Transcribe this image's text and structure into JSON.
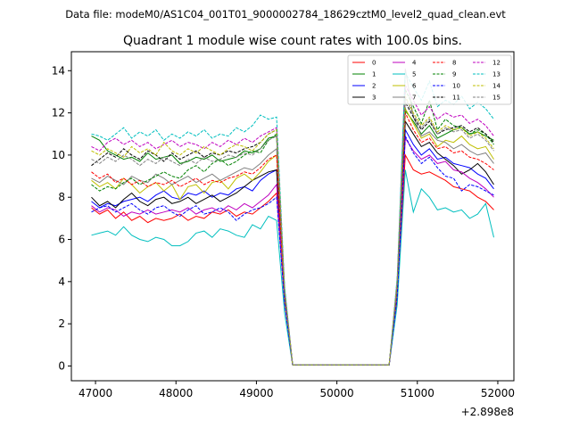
{
  "chart_data": {
    "type": "line",
    "suptitle": "Data file: modeM0/AS1C04_001T01_9000002784_18629cztM0_level2_quad_clean.evt",
    "title": "Quadrant 1 module wise count rates with 100.0s bins.",
    "xlabel": "",
    "ylabel": "",
    "x_offset_label": "+2.898e8",
    "xlim": [
      46700,
      52200
    ],
    "ylim": [
      -0.7,
      14.9
    ],
    "xticks": [
      47000,
      48000,
      49000,
      50000,
      51000,
      52000
    ],
    "xtick_labels": [
      "47000",
      "48000",
      "49000",
      "50000",
      "51000",
      "52000"
    ],
    "yticks": [
      0,
      2,
      4,
      6,
      8,
      10,
      12,
      14
    ],
    "ytick_labels": [
      "0",
      "2",
      "4",
      "6",
      "8",
      "10",
      "12",
      "14"
    ],
    "grid": false,
    "legend_position": "top-right",
    "x": [
      46950,
      47050,
      47150,
      47250,
      47350,
      47450,
      47550,
      47650,
      47750,
      47850,
      47950,
      48050,
      48150,
      48250,
      48350,
      48450,
      48550,
      48650,
      48750,
      48850,
      48950,
      49050,
      49150,
      49250,
      49350,
      49450,
      49550,
      50650,
      50750,
      50850,
      50950,
      51050,
      51150,
      51250,
      51350,
      51450,
      51550,
      51650,
      51750,
      51850,
      51950
    ],
    "series": [
      {
        "name": "0",
        "color": "#ff0000",
        "dash": "solid",
        "values": [
          7.5,
          7.2,
          7.4,
          7.0,
          7.3,
          6.9,
          7.1,
          6.8,
          7.0,
          6.9,
          7.0,
          7.2,
          6.9,
          7.1,
          7.0,
          7.3,
          7.2,
          7.4,
          7.1,
          7.3,
          7.2,
          7.5,
          7.8,
          8.2,
          3.0,
          0.05,
          0.05,
          0.05,
          3.2,
          10.0,
          9.3,
          9.1,
          9.2,
          9.0,
          8.8,
          8.5,
          8.4,
          8.3,
          8.0,
          7.8,
          7.4
        ]
      },
      {
        "name": "1",
        "color": "#008000",
        "dash": "solid",
        "values": [
          10.9,
          10.7,
          10.2,
          10.0,
          9.8,
          9.9,
          9.7,
          10.1,
          9.8,
          9.9,
          10.0,
          9.6,
          9.7,
          9.9,
          9.8,
          10.0,
          9.7,
          9.8,
          9.9,
          10.2,
          10.1,
          10.3,
          10.8,
          10.9,
          3.4,
          0.05,
          0.05,
          0.05,
          3.8,
          12.1,
          11.6,
          11.0,
          11.4,
          10.8,
          11.0,
          11.2,
          11.3,
          11.0,
          11.1,
          10.9,
          10.7
        ]
      },
      {
        "name": "2",
        "color": "#0000ff",
        "dash": "solid",
        "values": [
          7.8,
          7.5,
          7.7,
          7.6,
          7.8,
          7.9,
          8.0,
          7.8,
          8.1,
          8.3,
          8.0,
          7.9,
          8.2,
          8.1,
          8.3,
          8.0,
          8.2,
          8.1,
          8.4,
          8.5,
          8.3,
          8.8,
          9.1,
          9.3,
          3.2,
          0.05,
          0.05,
          0.05,
          3.6,
          11.2,
          10.5,
          10.0,
          10.3,
          9.8,
          9.9,
          9.6,
          9.5,
          9.4,
          9.1,
          8.9,
          8.4
        ]
      },
      {
        "name": "3",
        "color": "#000000",
        "dash": "solid",
        "values": [
          8.0,
          7.6,
          7.8,
          7.5,
          7.9,
          8.2,
          7.8,
          7.6,
          7.9,
          8.0,
          7.7,
          7.8,
          8.0,
          7.7,
          7.9,
          8.1,
          7.8,
          8.0,
          8.2,
          8.5,
          8.8,
          9.0,
          9.2,
          9.3,
          3.3,
          0.05,
          0.05,
          0.05,
          3.7,
          11.6,
          11.0,
          10.4,
          10.6,
          10.1,
          9.8,
          9.5,
          9.1,
          9.3,
          9.6,
          9.2,
          8.6
        ]
      },
      {
        "name": "4",
        "color": "#bf00bf",
        "dash": "solid",
        "values": [
          7.6,
          7.3,
          7.5,
          7.4,
          7.1,
          7.3,
          7.2,
          7.4,
          7.2,
          7.3,
          7.4,
          7.3,
          7.5,
          7.2,
          7.4,
          7.5,
          7.3,
          7.6,
          7.4,
          7.7,
          7.5,
          7.8,
          8.1,
          8.6,
          3.1,
          0.05,
          0.05,
          0.05,
          3.4,
          10.8,
          10.2,
          9.8,
          10.0,
          9.6,
          9.7,
          9.3,
          9.2,
          8.9,
          8.7,
          8.4,
          8.0
        ]
      },
      {
        "name": "5",
        "color": "#00bfbf",
        "dash": "solid",
        "values": [
          6.2,
          6.3,
          6.4,
          6.2,
          6.6,
          6.2,
          6.0,
          5.9,
          6.1,
          6.0,
          5.7,
          5.7,
          5.9,
          6.3,
          6.4,
          6.1,
          6.5,
          6.4,
          6.2,
          6.1,
          6.7,
          6.5,
          7.1,
          6.9,
          2.5,
          0.05,
          0.05,
          0.05,
          2.9,
          9.3,
          7.3,
          8.4,
          8.0,
          7.4,
          7.5,
          7.3,
          7.4,
          7.0,
          7.2,
          7.7,
          6.1
        ]
      },
      {
        "name": "6",
        "color": "#bfbf00",
        "dash": "solid",
        "values": [
          8.8,
          8.5,
          8.7,
          8.4,
          8.9,
          8.6,
          8.2,
          8.5,
          8.7,
          8.3,
          8.6,
          7.9,
          8.5,
          8.6,
          8.2,
          8.7,
          8.8,
          8.4,
          8.9,
          9.1,
          8.8,
          9.2,
          9.7,
          10.0,
          3.2,
          0.05,
          0.05,
          0.05,
          3.6,
          12.2,
          11.5,
          10.8,
          11.0,
          10.4,
          10.7,
          10.6,
          10.9,
          10.5,
          10.3,
          10.4,
          9.8
        ]
      },
      {
        "name": "7",
        "color": "#808080",
        "dash": "solid",
        "values": [
          8.9,
          8.7,
          9.0,
          8.8,
          8.6,
          9.0,
          8.8,
          8.7,
          9.1,
          8.9,
          8.6,
          8.8,
          9.0,
          8.7,
          8.9,
          9.1,
          8.8,
          9.0,
          9.2,
          9.4,
          9.3,
          9.6,
          10.0,
          10.3,
          3.4,
          0.05,
          0.05,
          0.05,
          3.9,
          14.1,
          11.8,
          10.9,
          11.1,
          10.7,
          10.6,
          10.3,
          10.5,
          10.2,
          10.0,
          10.1,
          9.6
        ]
      },
      {
        "name": "8",
        "color": "#ff0000",
        "dash": "dashed",
        "values": [
          9.2,
          8.9,
          9.1,
          8.7,
          8.9,
          8.6,
          8.8,
          8.5,
          8.7,
          8.6,
          8.8,
          8.5,
          8.7,
          8.9,
          8.6,
          8.8,
          8.7,
          8.9,
          9.0,
          9.2,
          9.1,
          9.4,
          9.8,
          10.0,
          3.3,
          0.05,
          0.05,
          0.05,
          3.7,
          12.0,
          11.2,
          10.6,
          10.8,
          10.3,
          10.4,
          10.1,
          10.2,
          9.9,
          9.8,
          9.6,
          9.3
        ]
      },
      {
        "name": "9",
        "color": "#008000",
        "dash": "dashed",
        "values": [
          8.6,
          8.3,
          8.5,
          8.4,
          8.7,
          8.9,
          8.6,
          8.8,
          9.0,
          9.2,
          9.0,
          8.9,
          9.3,
          9.5,
          9.2,
          9.6,
          9.8,
          9.5,
          9.7,
          10.0,
          10.2,
          10.1,
          10.7,
          11.0,
          3.5,
          0.05,
          0.05,
          0.05,
          3.9,
          13.1,
          12.3,
          11.5,
          12.6,
          11.2,
          11.7,
          11.4,
          11.3,
          11.0,
          11.2,
          11.0,
          10.5
        ]
      },
      {
        "name": "10",
        "color": "#0000ff",
        "dash": "dashed",
        "values": [
          7.3,
          7.5,
          7.6,
          7.3,
          7.5,
          7.7,
          7.4,
          7.2,
          7.5,
          7.6,
          7.3,
          7.1,
          7.4,
          7.6,
          7.2,
          7.3,
          7.5,
          7.3,
          6.9,
          7.2,
          7.4,
          7.5,
          7.7,
          8.0,
          3.0,
          0.05,
          0.05,
          0.05,
          3.3,
          10.9,
          10.1,
          9.6,
          9.9,
          9.4,
          9.0,
          8.9,
          8.3,
          8.6,
          8.5,
          8.3,
          8.1
        ]
      },
      {
        "name": "11",
        "color": "#000000",
        "dash": "dashed",
        "values": [
          9.5,
          9.8,
          10.1,
          9.9,
          10.3,
          10.0,
          9.8,
          10.2,
          10.0,
          9.7,
          10.1,
          9.8,
          10.0,
          10.2,
          9.9,
          10.1,
          10.0,
          10.2,
          10.1,
          10.3,
          10.4,
          10.6,
          11.0,
          11.2,
          3.6,
          0.05,
          0.05,
          0.05,
          4.0,
          12.5,
          11.8,
          11.2,
          11.6,
          11.0,
          11.2,
          11.3,
          11.4,
          11.1,
          11.3,
          11.0,
          10.6
        ]
      },
      {
        "name": "12",
        "color": "#bf00bf",
        "dash": "dashed",
        "values": [
          10.4,
          10.2,
          10.6,
          10.8,
          10.5,
          10.7,
          10.4,
          10.6,
          10.3,
          10.5,
          10.7,
          10.4,
          10.6,
          10.5,
          10.3,
          10.6,
          10.4,
          10.7,
          10.5,
          10.8,
          10.6,
          10.9,
          11.1,
          11.3,
          3.7,
          0.05,
          0.05,
          0.05,
          4.1,
          13.3,
          12.6,
          11.9,
          12.3,
          11.7,
          12.0,
          11.8,
          11.9,
          11.5,
          11.7,
          11.4,
          10.9
        ]
      },
      {
        "name": "13",
        "color": "#00bfbf",
        "dash": "dashed",
        "values": [
          11.0,
          10.9,
          10.7,
          11.0,
          11.3,
          10.8,
          11.1,
          10.9,
          11.2,
          10.7,
          11.0,
          10.8,
          11.1,
          10.9,
          11.2,
          10.8,
          11.0,
          10.9,
          11.3,
          11.1,
          11.4,
          11.9,
          11.7,
          11.8,
          3.8,
          0.05,
          0.05,
          0.05,
          4.2,
          13.9,
          13.2,
          12.6,
          13.5,
          12.3,
          12.6,
          12.4,
          12.8,
          12.2,
          12.5,
          12.2,
          11.7
        ]
      },
      {
        "name": "14",
        "color": "#bfbf00",
        "dash": "dashed",
        "values": [
          10.2,
          10.0,
          10.3,
          10.1,
          9.9,
          10.4,
          10.1,
          10.3,
          10.0,
          10.6,
          10.2,
          10.0,
          10.3,
          10.1,
          10.4,
          10.2,
          10.0,
          10.3,
          10.5,
          10.4,
          10.2,
          10.6,
          11.0,
          11.2,
          3.6,
          0.05,
          0.05,
          0.05,
          4.0,
          12.8,
          12.0,
          11.4,
          11.8,
          11.1,
          11.4,
          11.2,
          11.3,
          10.9,
          11.1,
          10.8,
          10.3
        ]
      },
      {
        "name": "15",
        "color": "#808080",
        "dash": "dashed",
        "values": [
          9.8,
          9.6,
          9.9,
          9.7,
          10.0,
          9.8,
          9.5,
          9.8,
          9.6,
          9.9,
          9.7,
          9.5,
          9.8,
          9.6,
          9.9,
          9.7,
          9.8,
          10.0,
          9.9,
          10.1,
          10.0,
          10.3,
          10.7,
          10.9,
          3.5,
          0.05,
          0.05,
          0.05,
          3.9,
          12.7,
          11.9,
          11.3,
          11.7,
          11.0,
          11.3,
          11.1,
          11.2,
          10.8,
          11.0,
          10.7,
          10.2
        ]
      }
    ]
  }
}
